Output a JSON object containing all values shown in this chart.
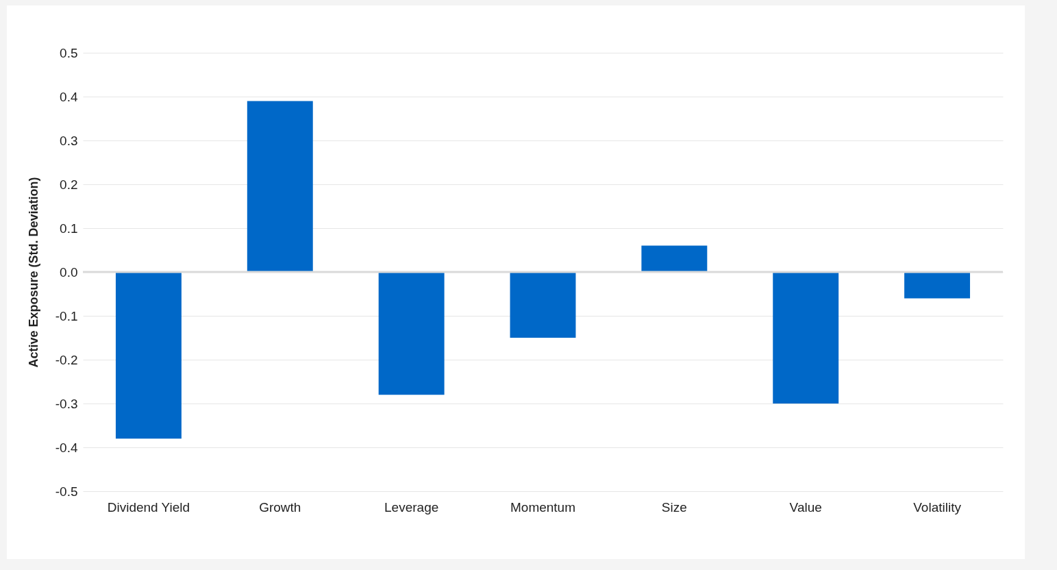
{
  "chart_data": {
    "type": "bar",
    "ylabel": "Active Exposure (Std. Deviation)",
    "categories": [
      "Dividend Yield",
      "Growth",
      "Leverage",
      "Momentum",
      "Size",
      "Value",
      "Volatility"
    ],
    "series": [
      {
        "color": "#0068c8",
        "values": [
          -0.38,
          0.39,
          -0.28,
          -0.15,
          0.06,
          -0.3,
          -0.06
        ]
      }
    ],
    "ylim": [
      -0.5,
      0.5
    ],
    "yticks": [
      -0.5,
      -0.4,
      -0.3,
      -0.2,
      -0.1,
      {
        "value": 0,
        "label": "0.0"
      },
      0.1,
      0.2,
      0.3,
      0.4,
      0.5
    ],
    "grid": "y",
    "ref_lines": [
      {
        "axis": "y",
        "value": 0,
        "color": "#d9d9d9"
      }
    ]
  }
}
